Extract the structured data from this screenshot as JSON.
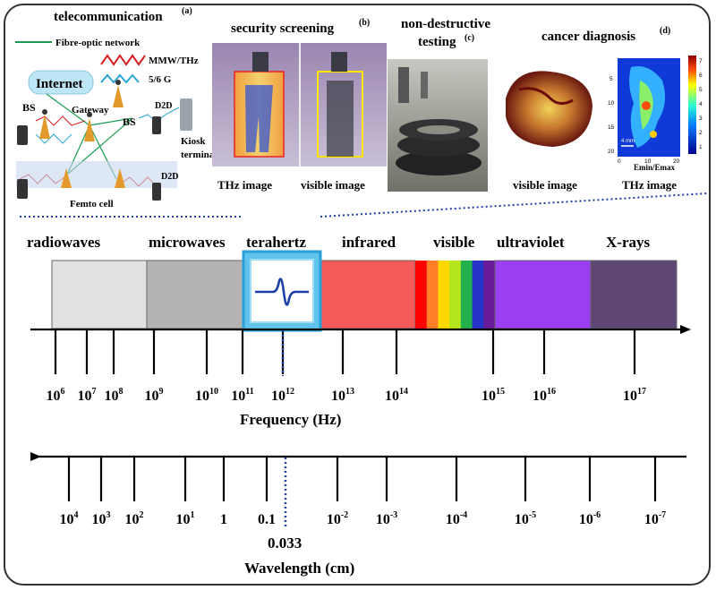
{
  "top_panels": {
    "telecom": {
      "title": "telecommunication",
      "sup": "(a)",
      "legend": [
        {
          "label": "Fibre-optic network",
          "color": "#1a9a50"
        },
        {
          "label": "MMW/THz",
          "color": "#d42020"
        },
        {
          "label": "5/6 G",
          "color": "#2aa5d6"
        }
      ],
      "internet": "Internet",
      "bs_left": "BS",
      "bs_right": "BS",
      "gateway": "Gateway",
      "d2d_top": "D2D",
      "d2d_bottom": "D2D",
      "kiosk": "Kiosk",
      "terminal": "terminal",
      "femto": "Femto cell"
    },
    "security": {
      "title": "security screening",
      "sup": "(b)",
      "cap_left": "THz image",
      "cap_right": "visible image"
    },
    "ndt": {
      "title_line1": "non-destructive",
      "title_line2": "testing",
      "sup": "(c)"
    },
    "cancer": {
      "title": "cancer diagnosis",
      "sup": "(d)",
      "cap_left": "visible image",
      "cap_right": "THz image",
      "colorbar_ticks": [
        "7",
        "6",
        "5",
        "4",
        "3",
        "2",
        "1"
      ],
      "y_ticks": [
        "5",
        "10",
        "15",
        "20"
      ],
      "x_ticks": [
        "0",
        "10",
        "20"
      ],
      "scale": "4 mm",
      "axis_label": "Emin/Emax"
    }
  },
  "spectrum": {
    "bands": [
      {
        "label": "radiowaves",
        "color": "#e2e2e2",
        "label_color": "#000"
      },
      {
        "label": "microwaves",
        "color": "#b4b4b4",
        "label_color": "#000"
      },
      {
        "label": "terahertz",
        "color": "#5fc3ec",
        "label_color": "#1d3fa8"
      },
      {
        "label": "infrared",
        "color": "#f45a5a",
        "label_color": "#000"
      },
      {
        "label": "visible",
        "color": "#ffffff",
        "label_color": "#000"
      },
      {
        "label": "ultraviolet",
        "color": "#9b3df0",
        "label_color": "#000"
      },
      {
        "label": "X-rays",
        "color": "#5e4775",
        "label_color": "#000"
      }
    ],
    "visible_colors": [
      "#ff0000",
      "#ff7f27",
      "#ffd800",
      "#b5e61d",
      "#22b14c",
      "#2633c8",
      "#6a1b9a"
    ]
  },
  "frequency_axis": {
    "label": "Frequency (Hz)",
    "ticks": [
      {
        "base": "10",
        "exp": "6"
      },
      {
        "base": "10",
        "exp": "7"
      },
      {
        "base": "10",
        "exp": "8"
      },
      {
        "base": "10",
        "exp": "9"
      },
      {
        "base": "10",
        "exp": "10"
      },
      {
        "base": "10",
        "exp": "11"
      },
      {
        "base": "10",
        "exp": "12"
      },
      {
        "base": "10",
        "exp": "13"
      },
      {
        "base": "10",
        "exp": "14"
      },
      {
        "base": "10",
        "exp": "15"
      },
      {
        "base": "10",
        "exp": "16"
      },
      {
        "base": "10",
        "exp": "17"
      }
    ],
    "highlight_tick": "10^12",
    "highlight_color": "#1d3fa8"
  },
  "wavelength_axis": {
    "label": "Wavelength (cm)",
    "ticks": [
      {
        "base": "10",
        "exp": "4"
      },
      {
        "base": "10",
        "exp": "3"
      },
      {
        "base": "10",
        "exp": "2"
      },
      {
        "base": "10",
        "exp": "1"
      },
      {
        "base": "1",
        "exp": ""
      },
      {
        "base": "0.1",
        "exp": ""
      },
      {
        "base": "10",
        "exp": "-2"
      },
      {
        "base": "10",
        "exp": "-3"
      },
      {
        "base": "10",
        "exp": "-4"
      },
      {
        "base": "10",
        "exp": "-5"
      },
      {
        "base": "10",
        "exp": "-6"
      },
      {
        "base": "10",
        "exp": "-7"
      }
    ],
    "marker": "0.033",
    "marker_color": "#1d3fa8"
  }
}
